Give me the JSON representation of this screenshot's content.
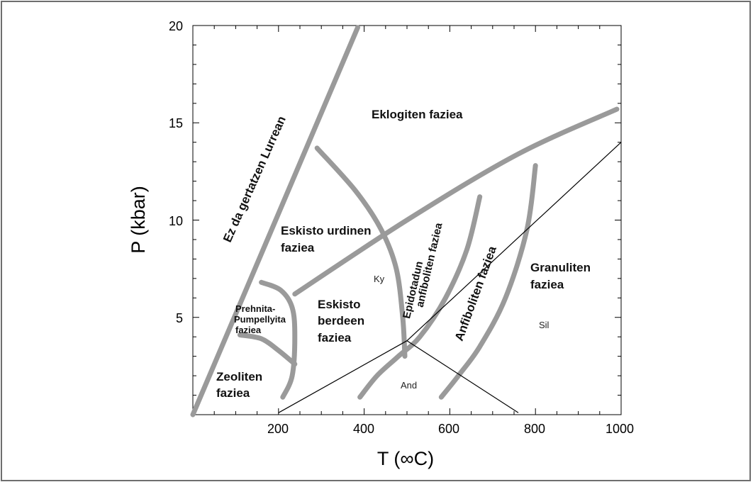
{
  "chart_data": {
    "type": "diagram",
    "xlabel": "T (∞C)",
    "ylabel": "P (kbar)",
    "xlim": [
      0,
      1000
    ],
    "ylim": [
      0,
      20
    ],
    "x_ticks": [
      "200",
      "400",
      "600",
      "800",
      "1000"
    ],
    "y_ticks": [
      "5",
      "10",
      "15",
      "20"
    ],
    "facies_labels": {
      "eklogiten": "Eklogiten faziea",
      "eskisto_urdinen_1": "Eskisto urdinen",
      "eskisto_urdinen_2": "faziea",
      "prehnita_1": "Prehnita-",
      "prehnita_2": "Pumpellyita",
      "prehnita_3": "faziea",
      "eskisto_berdeen_1": "Eskisto",
      "eskisto_berdeen_2": "berdeen",
      "eskisto_berdeen_3": "faziea",
      "zeoliten_1": "Zeoliten",
      "zeoliten_2": "faziea",
      "epidotadun_1": "Epidotadun",
      "epidotadun_2": "anfiboliten faziea",
      "anfiboliten": "Anfiboliten faziea",
      "granuliten_1": "Granuliten",
      "granuliten_2": "faziea",
      "ez_da": "Ez da gertatzen Lurrean"
    },
    "mineral_labels": {
      "ky": "Ky",
      "sil": "Sil",
      "and": "And"
    },
    "facies_boundaries": [
      {
        "name": "not-on-earth-limit",
        "points": [
          [
            0,
            0
          ],
          [
            385,
            19.9
          ]
        ]
      },
      {
        "name": "blueschist-eclogite-upper",
        "points": [
          [
            238,
            6.2
          ],
          [
            500,
            10.0
          ],
          [
            760,
            13.4
          ],
          [
            990,
            15.7
          ]
        ]
      },
      {
        "name": "eclogite-blueschist-greenschist",
        "points": [
          [
            290,
            13.7
          ],
          [
            380,
            11.5
          ],
          [
            440,
            9.5
          ],
          [
            475,
            7.5
          ],
          [
            490,
            5.0
          ],
          [
            495,
            3.0
          ]
        ]
      },
      {
        "name": "prehnite-pumpellyite-outer",
        "points": [
          [
            160,
            6.8
          ],
          [
            205,
            6.4
          ],
          [
            232,
            5.5
          ],
          [
            238,
            4.0
          ],
          [
            232,
            2.0
          ],
          [
            210,
            0.9
          ]
        ]
      },
      {
        "name": "prehnite-pumpellyite-inner",
        "points": [
          [
            110,
            4.1
          ],
          [
            160,
            3.9
          ],
          [
            200,
            3.3
          ],
          [
            238,
            2.6
          ]
        ]
      },
      {
        "name": "greenschist-epidote-amphibolite",
        "points": [
          [
            390,
            0.9
          ],
          [
            430,
            2.0
          ],
          [
            480,
            3.0
          ],
          [
            530,
            4.0
          ],
          [
            590,
            6.0
          ],
          [
            640,
            8.5
          ],
          [
            670,
            11.2
          ]
        ]
      },
      {
        "name": "amphibolite-granulite",
        "points": [
          [
            580,
            0.9
          ],
          [
            620,
            2.0
          ],
          [
            670,
            3.5
          ],
          [
            730,
            6.0
          ],
          [
            780,
            9.5
          ],
          [
            800,
            12.8
          ]
        ]
      }
    ],
    "aluminosilicate_lines": [
      {
        "name": "ky-and",
        "points": [
          [
            200,
            0.1
          ],
          [
            500,
            3.8
          ]
        ]
      },
      {
        "name": "ky-sil",
        "points": [
          [
            500,
            3.8
          ],
          [
            1000,
            14.0
          ]
        ]
      },
      {
        "name": "and-sil",
        "points": [
          [
            500,
            3.8
          ],
          [
            760,
            0.1
          ]
        ]
      }
    ]
  }
}
